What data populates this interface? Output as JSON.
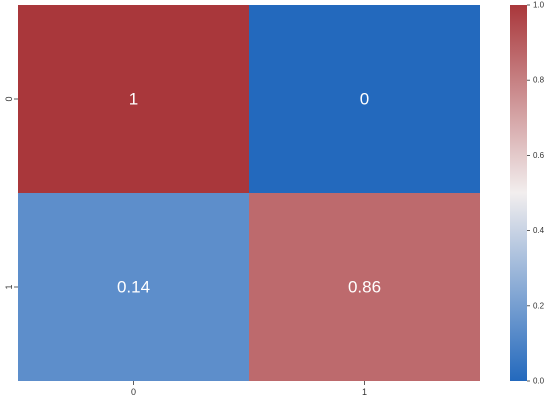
{
  "chart_data": {
    "type": "heatmap",
    "x_categories": [
      "0",
      "1"
    ],
    "y_categories": [
      "0",
      "1"
    ],
    "values": [
      [
        1,
        0
      ],
      [
        0.14,
        0.86
      ]
    ],
    "annotations": [
      [
        "1",
        "0"
      ],
      [
        "0.14",
        "0.86"
      ]
    ],
    "title": "",
    "xlabel": "",
    "ylabel": "",
    "colorbar": {
      "range": [
        0.0,
        1.0
      ],
      "ticks": [
        0.0,
        0.2,
        0.4,
        0.6,
        0.8,
        1.0
      ],
      "tick_labels": [
        "0.0",
        "0.2",
        "0.4",
        "0.6",
        "0.8",
        "1.0"
      ],
      "colormap": "vlag",
      "low_color": "#2369bd",
      "mid_color": "#f2eeee",
      "high_color": "#a9373b"
    },
    "grid": false
  }
}
